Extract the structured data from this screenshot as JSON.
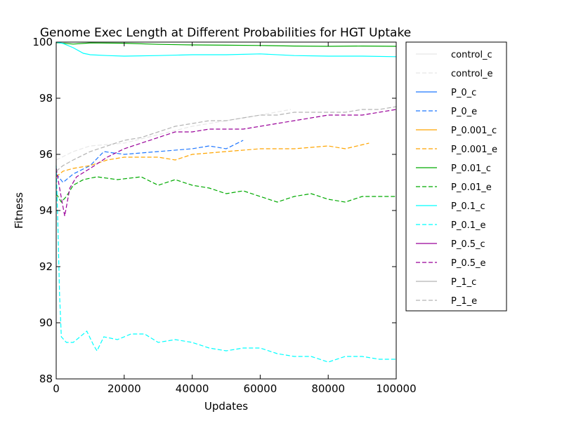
{
  "chart_data": {
    "type": "line",
    "title": "Genome Exec Length at Different Probabilities for HGT Uptake",
    "xlabel": "Updates",
    "ylabel": "Fitness",
    "xlim": [
      0,
      100000
    ],
    "ylim": [
      88,
      100
    ],
    "x_ticks": [
      0,
      20000,
      40000,
      60000,
      80000,
      100000
    ],
    "y_ticks": [
      88,
      90,
      92,
      94,
      96,
      98,
      100
    ],
    "grid": false,
    "legend_position": "outside-right",
    "series": [
      {
        "name": "control_c",
        "color": "#e8e8e8",
        "dash": "solid",
        "points": []
      },
      {
        "name": "control_e",
        "color": "#e8e8e8",
        "dash": "dashed",
        "points": [
          [
            0,
            95.8
          ],
          [
            5000,
            96.1
          ],
          [
            10000,
            96.3
          ],
          [
            20000,
            96.4
          ],
          [
            30000,
            96.7
          ],
          [
            40000,
            97.0
          ],
          [
            50000,
            97.2
          ],
          [
            60000,
            97.4
          ],
          [
            69000,
            97.6
          ]
        ]
      },
      {
        "name": "P_0_c",
        "color": "#1f77ff",
        "dash": "solid",
        "points": []
      },
      {
        "name": "P_0_e",
        "color": "#1f77ff",
        "dash": "dashed",
        "points": [
          [
            0,
            95.3
          ],
          [
            2000,
            95.0
          ],
          [
            5000,
            95.3
          ],
          [
            10000,
            95.6
          ],
          [
            14000,
            96.1
          ],
          [
            20000,
            96.0
          ],
          [
            30000,
            96.1
          ],
          [
            40000,
            96.2
          ],
          [
            45000,
            96.3
          ],
          [
            50000,
            96.2
          ],
          [
            55000,
            96.5
          ]
        ]
      },
      {
        "name": "P_0.001_c",
        "color": "#ffa500",
        "dash": "solid",
        "points": []
      },
      {
        "name": "P_0.001_e",
        "color": "#ffa500",
        "dash": "dashed",
        "points": [
          [
            0,
            95.2
          ],
          [
            2000,
            95.4
          ],
          [
            5000,
            95.5
          ],
          [
            10000,
            95.6
          ],
          [
            15000,
            95.8
          ],
          [
            20000,
            95.9
          ],
          [
            30000,
            95.9
          ],
          [
            35000,
            95.8
          ],
          [
            40000,
            96.0
          ],
          [
            50000,
            96.1
          ],
          [
            60000,
            96.2
          ],
          [
            70000,
            96.2
          ],
          [
            80000,
            96.3
          ],
          [
            85000,
            96.2
          ],
          [
            92000,
            96.4
          ]
        ]
      },
      {
        "name": "P_0.01_c",
        "color": "#00aa00",
        "dash": "solid",
        "points": [
          [
            0,
            99.98
          ],
          [
            5000,
            99.93
          ],
          [
            10000,
            99.97
          ],
          [
            20000,
            99.96
          ],
          [
            30000,
            99.92
          ],
          [
            40000,
            99.9
          ],
          [
            50000,
            99.89
          ],
          [
            60000,
            99.88
          ],
          [
            70000,
            99.86
          ],
          [
            80000,
            99.85
          ],
          [
            90000,
            99.86
          ],
          [
            100000,
            99.85
          ]
        ]
      },
      {
        "name": "P_0.01_e",
        "color": "#00aa00",
        "dash": "dashed",
        "points": [
          [
            0,
            94.6
          ],
          [
            1500,
            94.3
          ],
          [
            3000,
            94.5
          ],
          [
            5000,
            94.9
          ],
          [
            8000,
            95.1
          ],
          [
            12000,
            95.2
          ],
          [
            18000,
            95.1
          ],
          [
            25000,
            95.2
          ],
          [
            30000,
            94.9
          ],
          [
            35000,
            95.1
          ],
          [
            40000,
            94.9
          ],
          [
            45000,
            94.8
          ],
          [
            50000,
            94.6
          ],
          [
            55000,
            94.7
          ],
          [
            60000,
            94.5
          ],
          [
            65000,
            94.3
          ],
          [
            70000,
            94.5
          ],
          [
            75000,
            94.6
          ],
          [
            80000,
            94.4
          ],
          [
            85000,
            94.3
          ],
          [
            90000,
            94.5
          ],
          [
            95000,
            94.5
          ],
          [
            100000,
            94.5
          ]
        ]
      },
      {
        "name": "P_0.1_c",
        "color": "#00ffff",
        "dash": "solid",
        "points": [
          [
            0,
            100.0
          ],
          [
            2000,
            99.95
          ],
          [
            5000,
            99.8
          ],
          [
            8000,
            99.6
          ],
          [
            10000,
            99.55
          ],
          [
            15000,
            99.52
          ],
          [
            20000,
            99.5
          ],
          [
            30000,
            99.52
          ],
          [
            40000,
            99.55
          ],
          [
            50000,
            99.55
          ],
          [
            60000,
            99.58
          ],
          [
            70000,
            99.52
          ],
          [
            80000,
            99.5
          ],
          [
            90000,
            99.5
          ],
          [
            100000,
            99.48
          ]
        ]
      },
      {
        "name": "P_0.1_e",
        "color": "#00ffff",
        "dash": "dashed",
        "points": [
          [
            0,
            95.6
          ],
          [
            500,
            93.5
          ],
          [
            1000,
            91.0
          ],
          [
            1500,
            89.5
          ],
          [
            3000,
            89.3
          ],
          [
            5000,
            89.3
          ],
          [
            7000,
            89.5
          ],
          [
            9000,
            89.7
          ],
          [
            11000,
            89.2
          ],
          [
            12000,
            89.0
          ],
          [
            14000,
            89.5
          ],
          [
            18000,
            89.4
          ],
          [
            22000,
            89.6
          ],
          [
            26000,
            89.6
          ],
          [
            30000,
            89.3
          ],
          [
            35000,
            89.4
          ],
          [
            40000,
            89.3
          ],
          [
            45000,
            89.1
          ],
          [
            50000,
            89.0
          ],
          [
            55000,
            89.1
          ],
          [
            60000,
            89.1
          ],
          [
            65000,
            88.9
          ],
          [
            70000,
            88.8
          ],
          [
            75000,
            88.8
          ],
          [
            80000,
            88.6
          ],
          [
            85000,
            88.8
          ],
          [
            90000,
            88.8
          ],
          [
            95000,
            88.7
          ],
          [
            100000,
            88.7
          ]
        ]
      },
      {
        "name": "P_0.5_c",
        "color": "#990099",
        "dash": "solid",
        "points": []
      },
      {
        "name": "P_0.5_e",
        "color": "#990099",
        "dash": "dashed",
        "points": [
          [
            0,
            95.5
          ],
          [
            1000,
            94.8
          ],
          [
            2500,
            93.8
          ],
          [
            4000,
            94.8
          ],
          [
            6000,
            95.2
          ],
          [
            10000,
            95.5
          ],
          [
            15000,
            95.9
          ],
          [
            20000,
            96.2
          ],
          [
            25000,
            96.4
          ],
          [
            30000,
            96.6
          ],
          [
            35000,
            96.8
          ],
          [
            40000,
            96.8
          ],
          [
            45000,
            96.9
          ],
          [
            50000,
            96.9
          ],
          [
            55000,
            96.9
          ],
          [
            60000,
            97.0
          ],
          [
            65000,
            97.1
          ],
          [
            70000,
            97.2
          ],
          [
            75000,
            97.3
          ],
          [
            80000,
            97.4
          ],
          [
            85000,
            97.4
          ],
          [
            90000,
            97.4
          ],
          [
            95000,
            97.5
          ],
          [
            100000,
            97.6
          ]
        ]
      },
      {
        "name": "P_1_c",
        "color": "#b3b3b3",
        "dash": "solid",
        "points": []
      },
      {
        "name": "P_1_e",
        "color": "#b3b3b3",
        "dash": "dashed",
        "points": [
          [
            0,
            95.4
          ],
          [
            2000,
            95.6
          ],
          [
            5000,
            95.8
          ],
          [
            10000,
            96.1
          ],
          [
            15000,
            96.3
          ],
          [
            20000,
            96.5
          ],
          [
            25000,
            96.6
          ],
          [
            30000,
            96.8
          ],
          [
            35000,
            97.0
          ],
          [
            40000,
            97.1
          ],
          [
            45000,
            97.2
          ],
          [
            50000,
            97.2
          ],
          [
            55000,
            97.3
          ],
          [
            60000,
            97.4
          ],
          [
            65000,
            97.4
          ],
          [
            70000,
            97.5
          ],
          [
            75000,
            97.5
          ],
          [
            80000,
            97.5
          ],
          [
            85000,
            97.5
          ],
          [
            90000,
            97.6
          ],
          [
            95000,
            97.6
          ],
          [
            100000,
            97.7
          ]
        ]
      }
    ]
  }
}
